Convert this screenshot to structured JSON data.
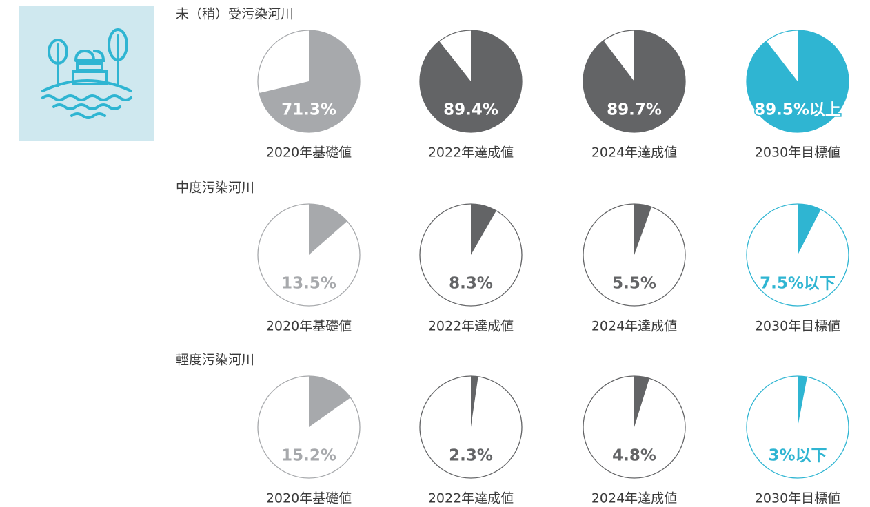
{
  "chart_data": [
    {
      "type": "pie",
      "title": "未（稍）受污染河川",
      "categories": [
        "2020年基礎値",
        "2022年達成値",
        "2024年達成値",
        "2030年目標値"
      ],
      "values": [
        71.3,
        89.4,
        89.7,
        89.5
      ],
      "value_labels": [
        "71.3%",
        "89.4%",
        "89.7%",
        "89.5%以上"
      ],
      "colors": [
        "#a7a9ac",
        "#636466",
        "#636466",
        "#2fb5d2"
      ],
      "label_color": "#ffffff"
    },
    {
      "type": "pie",
      "title": "中度污染河川",
      "categories": [
        "2020年基礎値",
        "2022年達成値",
        "2024年達成値",
        "2030年目標値"
      ],
      "values": [
        13.5,
        8.3,
        5.5,
        7.5
      ],
      "value_labels": [
        "13.5%",
        "8.3%",
        "5.5%",
        "7.5%以下"
      ],
      "colors": [
        "#a7a9ac",
        "#636466",
        "#636466",
        "#2fb5d2"
      ]
    },
    {
      "type": "pie",
      "title": "輕度污染河川",
      "categories": [
        "2020年基礎値",
        "2022年達成値",
        "2024年達成値",
        "2030年目標値"
      ],
      "values": [
        15.2,
        2.3,
        4.8,
        3
      ],
      "value_labels": [
        "15.2%",
        "2.3%",
        "4.8%",
        "3%以下"
      ],
      "colors": [
        "#a7a9ac",
        "#636466",
        "#636466",
        "#2fb5d2"
      ]
    }
  ]
}
